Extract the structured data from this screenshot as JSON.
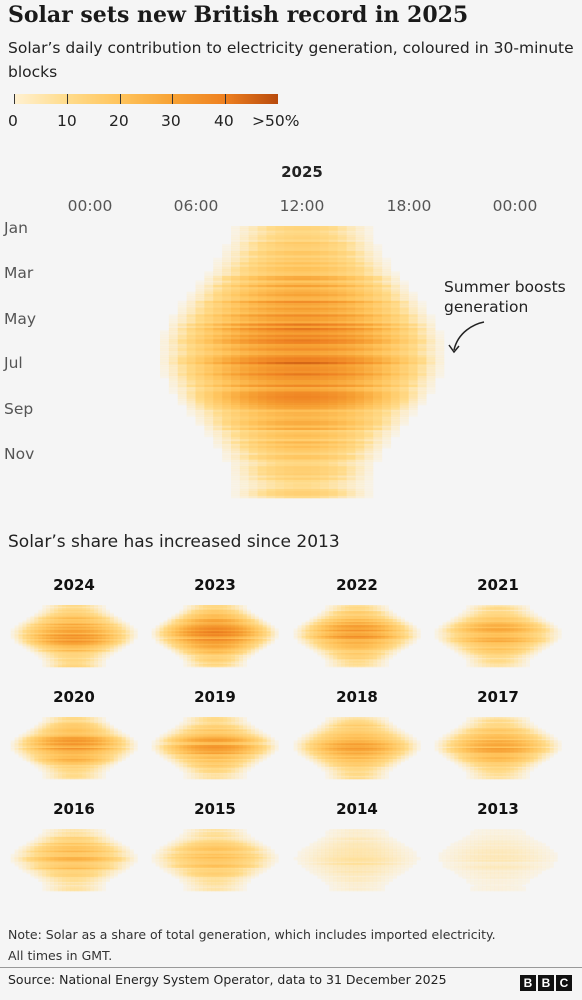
{
  "header": {
    "title": "Solar sets new British record in 2025",
    "subtitle": "Solar’s daily contribution to electricity generation, coloured in 30-minute blocks"
  },
  "legend": {
    "labels": [
      "0",
      "10",
      "20",
      "30",
      "40",
      ">50%"
    ],
    "colors": [
      "#fff1d2",
      "#ffdc8c",
      "#ffc45c",
      "#f7a234",
      "#ee8020",
      "#b84a0c"
    ]
  },
  "main_chart": {
    "year": "2025",
    "hour_labels": [
      "00:00",
      "06:00",
      "12:00",
      "18:00",
      "00:00"
    ],
    "month_labels": [
      "Jan",
      "Mar",
      "May",
      "Jul",
      "Sep",
      "Nov"
    ],
    "annotation_line1": "Summer boosts",
    "annotation_line2": "generation"
  },
  "small_multiples": {
    "title": "Solar’s share has increased since 2013",
    "years": [
      "2024",
      "2023",
      "2022",
      "2021",
      "2020",
      "2019",
      "2018",
      "2017",
      "2016",
      "2015",
      "2014",
      "2013"
    ]
  },
  "footer": {
    "note_line1": "Note: Solar as a share of total generation, which includes imported electricity.",
    "note_line2": "All times in GMT.",
    "source": "Source: National Energy System Operator, data to 31 December 2025",
    "logo_letters": [
      "B",
      "B",
      "C"
    ]
  },
  "chart_data": {
    "type": "heatmap",
    "title": "Solar sets new British record in 2025",
    "x_axis": "time of day (30-minute blocks, GMT)",
    "y_axis": "day of year",
    "value_units": "percent share of total generation",
    "color_scale": {
      "min": 0,
      "max": 50,
      "ticks": [
        0,
        10,
        20,
        30,
        40,
        50
      ]
    },
    "main_year": 2025,
    "peak_share_approx": {
      "2025": 40,
      "2024": 34,
      "2023": 36,
      "2022": 33,
      "2021": 27,
      "2020": 32,
      "2019": 30,
      "2018": 30,
      "2017": 28,
      "2016": 24,
      "2015": 21,
      "2014": 10,
      "2013": 6
    }
  }
}
